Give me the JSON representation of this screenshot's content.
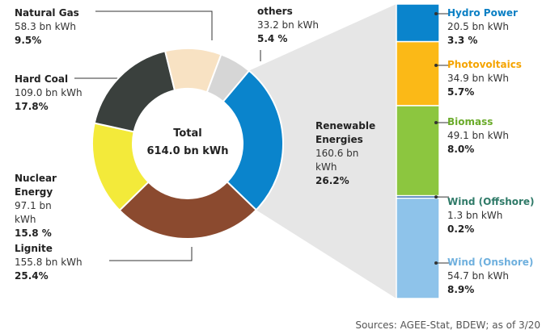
{
  "chart_data": {
    "type": "pie",
    "donut": true,
    "center_title": "Total",
    "center_label": "614.0 bn kWh",
    "categories": [
      "Renewable Energies",
      "Lignite",
      "Nuclear Energy",
      "Hard Coal",
      "Natural Gas",
      "others"
    ],
    "values": [
      160.6,
      155.8,
      97.1,
      109.0,
      58.3,
      33.2
    ],
    "value_labels": [
      "160.6 bn kWh",
      "155.8 bn kWh",
      "97.1 bn kWh",
      "109.0 bn kWh",
      "58.3 bn kWh",
      "33.2 bn kWh"
    ],
    "percents": [
      26.2,
      25.4,
      15.8,
      17.8,
      9.5,
      5.4
    ],
    "percent_labels": [
      "26.2%",
      "25.4%",
      "15.8 %",
      "17.8%",
      "9.5%",
      "5.4 %"
    ],
    "colors": [
      "#0a84cc",
      "#8b4a2f",
      "#f3ea3a",
      "#3a403d",
      "#f8e2c3",
      "#d6d6d6"
    ],
    "breakdown": {
      "categories": [
        "Hydro Power",
        "Photovoltaics",
        "Biomass",
        "Wind (Offshore)",
        "Wind (Onshore)"
      ],
      "values": [
        20.5,
        34.9,
        49.1,
        1.3,
        54.7
      ],
      "value_labels": [
        "20.5 bn kWh",
        "34.9 bn kWh",
        "49.1 bn kWh",
        "1.3 bn kWh",
        "54.7 bn kWh"
      ],
      "percents": [
        3.3,
        5.7,
        8.0,
        0.2,
        8.9
      ],
      "percent_labels": [
        "3.3 %",
        "5.7%",
        "8.0%",
        "0.2%",
        "8.9%"
      ],
      "colors": [
        "#0a84cc",
        "#fbb917",
        "#8cc63f",
        "#1b5fa6",
        "#8ec3ea"
      ],
      "label_colors": [
        "#0a7fc4",
        "#f5a400",
        "#6aab2a",
        "#2f7a68",
        "#6fb0de"
      ]
    },
    "source": "Sources: AGEE-Stat, BDEW; as of 3/20"
  }
}
